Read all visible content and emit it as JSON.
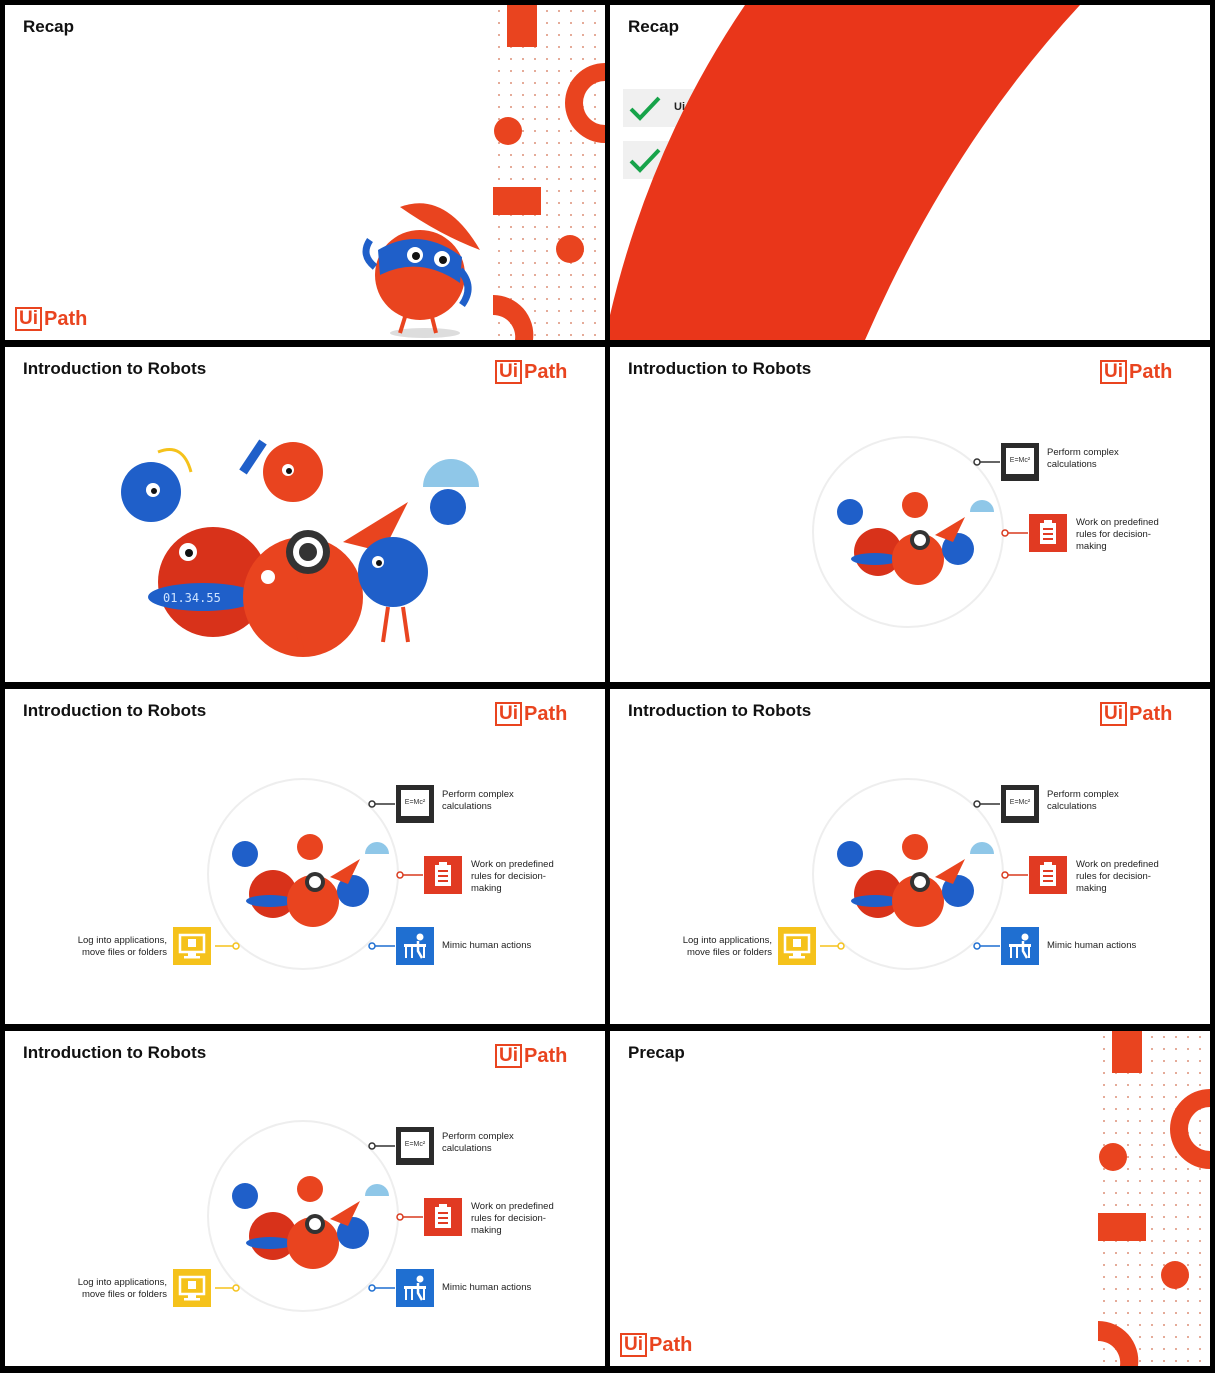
{
  "slides": [
    {
      "title": "Recap"
    },
    {
      "title": "Recap",
      "partial_text": "Ui"
    },
    {
      "title": "Introduction to Robots"
    },
    {
      "title": "Introduction to Robots"
    },
    {
      "title": "Introduction to Robots"
    },
    {
      "title": "Introduction to Robots"
    },
    {
      "title": "Introduction to Robots"
    },
    {
      "title": "Precap"
    }
  ],
  "logo": {
    "ui": "Ui",
    "path": "Path"
  },
  "features": {
    "calc": [
      "Perform complex",
      "calculations"
    ],
    "rules": [
      "Work on predefined",
      "rules for decision-",
      "making"
    ],
    "mimic": [
      "Mimic human actions"
    ],
    "log": [
      "Log into applications,",
      "move files or folders"
    ]
  },
  "robot_display": "01.34.55",
  "emc_label": "E=Mc²",
  "colors": {
    "brand": "#e9441f",
    "blue": "#1f6fd1",
    "yellow": "#f5c21b",
    "dark": "#333333"
  },
  "icons": {
    "calc": "formula-board-icon",
    "rules": "clipboard-list-icon",
    "mimic": "person-at-desk-icon",
    "log": "monitor-icon"
  }
}
